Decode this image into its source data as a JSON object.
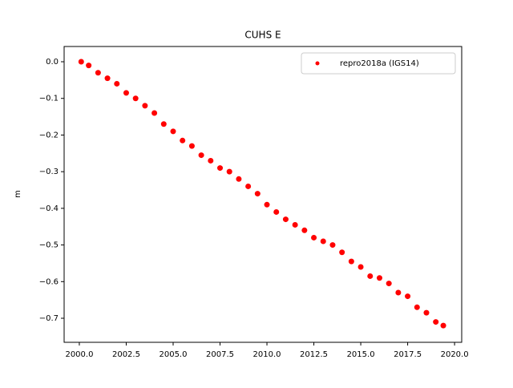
{
  "chart_data": {
    "type": "scatter",
    "title": "CUHS E",
    "ylabel": "m",
    "series": [
      {
        "name": "repro2018a (IGS14)",
        "color": "#ff0000",
        "x": [
          2000.1,
          2000.5,
          2001,
          2001.5,
          2002,
          2002.5,
          2003,
          2003.5,
          2004,
          2004.5,
          2005,
          2005.5,
          2006,
          2006.5,
          2007,
          2007.5,
          2008,
          2008.5,
          2009,
          2009.5,
          2010,
          2010.5,
          2011,
          2011.5,
          2012,
          2012.5,
          2013,
          2013.5,
          2014,
          2014.5,
          2015,
          2015.5,
          2016,
          2016.5,
          2017,
          2017.5,
          2018,
          2018.5,
          2019,
          2019.4
        ],
        "values": [
          0.0,
          -0.01,
          -0.03,
          -0.045,
          -0.06,
          -0.085,
          -0.1,
          -0.12,
          -0.14,
          -0.17,
          -0.19,
          -0.215,
          -0.23,
          -0.255,
          -0.27,
          -0.29,
          -0.3,
          -0.32,
          -0.34,
          -0.36,
          -0.39,
          -0.41,
          -0.43,
          -0.445,
          -0.46,
          -0.48,
          -0.49,
          -0.5,
          -0.52,
          -0.545,
          -0.56,
          -0.585,
          -0.59,
          -0.605,
          -0.63,
          -0.64,
          -0.67,
          -0.685,
          -0.71,
          -0.72
        ]
      }
    ],
    "xlim": [
      1999.19,
      2020.38
    ],
    "xticks": [
      {
        "value": 2000,
        "label": "2000.0"
      },
      {
        "value": 2002.5,
        "label": "2002.5"
      },
      {
        "value": 2005,
        "label": "2005.0"
      },
      {
        "value": 2007.5,
        "label": "2007.5"
      },
      {
        "value": 2010,
        "label": "2010.0"
      },
      {
        "value": 2012.5,
        "label": "2012.5"
      },
      {
        "value": 2015,
        "label": "2015.0"
      },
      {
        "value": 2017.5,
        "label": "2017.5"
      },
      {
        "value": 2020,
        "label": "2020.0"
      }
    ],
    "ylim": [
      -0.7656,
      0.0416
    ],
    "yticks": [
      {
        "value": 0,
        "label": "0.0"
      },
      {
        "value": -0.1,
        "label": "−0.1"
      },
      {
        "value": -0.2,
        "label": "−0.2"
      },
      {
        "value": -0.3,
        "label": "−0.3"
      },
      {
        "value": -0.4,
        "label": "−0.4"
      },
      {
        "value": -0.5,
        "label": "−0.5"
      },
      {
        "value": -0.6,
        "label": "−0.6"
      },
      {
        "value": -0.7,
        "label": "−0.7"
      }
    ],
    "legend": "upper right"
  }
}
